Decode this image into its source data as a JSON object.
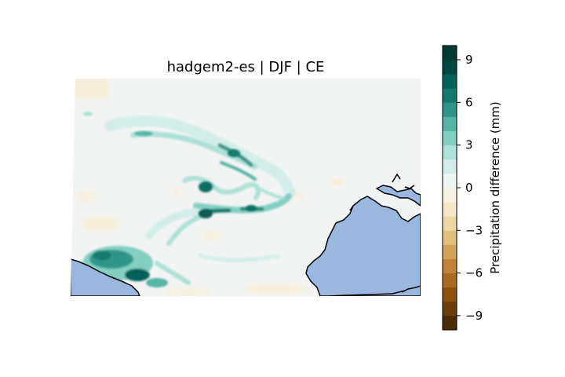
{
  "title": "hadgem2-es | DJF | CE",
  "colorbar": {
    "label": "Precipitation difference (mm)",
    "ticks": [
      "9",
      "6",
      "3",
      "0",
      "−3",
      "−6",
      "−9"
    ],
    "min": -10,
    "max": 10,
    "colors": [
      "#4a2d06",
      "#6b3f0b",
      "#8c520f",
      "#a96a21",
      "#c08339",
      "#d1a25b",
      "#e0bf7f",
      "#ecd7a5",
      "#f4e8c8",
      "#f7f2e3",
      "#eef6f5",
      "#d3eeea",
      "#ade0d7",
      "#83cfc2",
      "#57b3a4",
      "#2f9588",
      "#147a6c",
      "#04605a",
      "#00473f",
      "#003a33"
    ],
    "cmap": "BrBG"
  },
  "map": {
    "ocean_color": "#9ab7e0",
    "land_color": "#f2f4f3",
    "coastline_color": "#000000"
  }
}
